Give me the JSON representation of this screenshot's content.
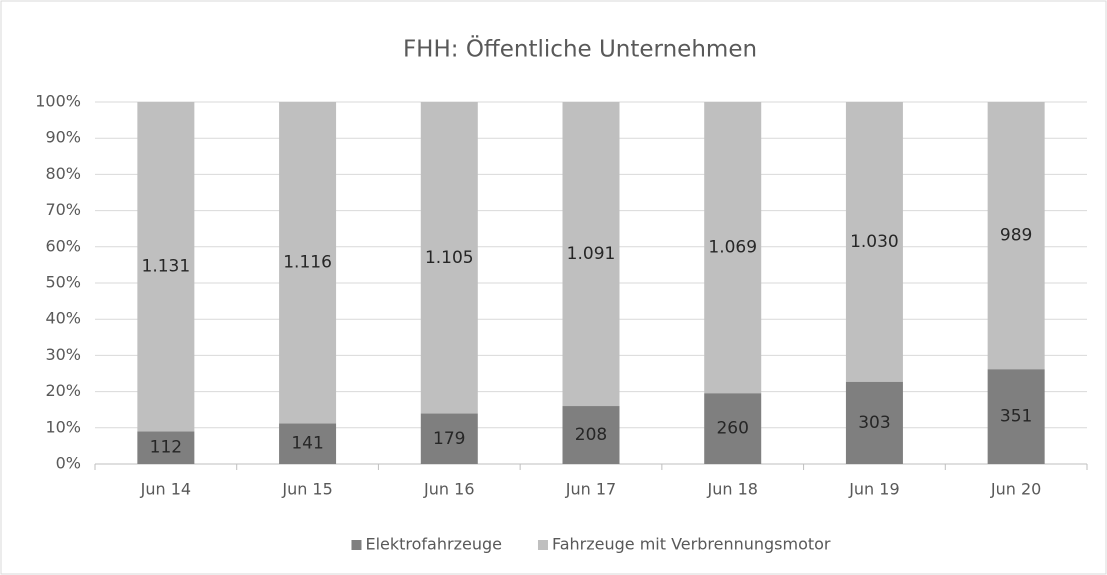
{
  "chart_data": {
    "type": "bar",
    "stack": "percent",
    "title": "FHH: Öffentliche Unternehmen",
    "categories": [
      "Jun 14",
      "Jun 15",
      "Jun 16",
      "Jun 17",
      "Jun 18",
      "Jun 19",
      "Jun 20"
    ],
    "series": [
      {
        "name": "Elektrofahrzeuge",
        "color": "#7f7f7f",
        "values": [
          112,
          141,
          179,
          208,
          260,
          303,
          351
        ]
      },
      {
        "name": "Fahrzeuge mit Verbrennungsmotor",
        "color": "#bfbfbf",
        "values": [
          1131,
          1116,
          1105,
          1091,
          1069,
          1030,
          989
        ],
        "value_labels": [
          "1.131",
          "1.116",
          "1.105",
          "1.091",
          "1.069",
          "1.030",
          "989"
        ]
      }
    ],
    "ylim": [
      0,
      100
    ],
    "yticks": [
      {
        "value": 0,
        "label": "0%"
      },
      {
        "value": 10,
        "label": "10%"
      },
      {
        "value": 20,
        "label": "20%"
      },
      {
        "value": 30,
        "label": "30%"
      },
      {
        "value": 40,
        "label": "40%"
      },
      {
        "value": 50,
        "label": "50%"
      },
      {
        "value": 60,
        "label": "60%"
      },
      {
        "value": 70,
        "label": "70%"
      },
      {
        "value": 80,
        "label": "80%"
      },
      {
        "value": 90,
        "label": "90%"
      },
      {
        "value": 100,
        "label": "100%"
      }
    ],
    "grid": true,
    "legend": "bottom"
  }
}
